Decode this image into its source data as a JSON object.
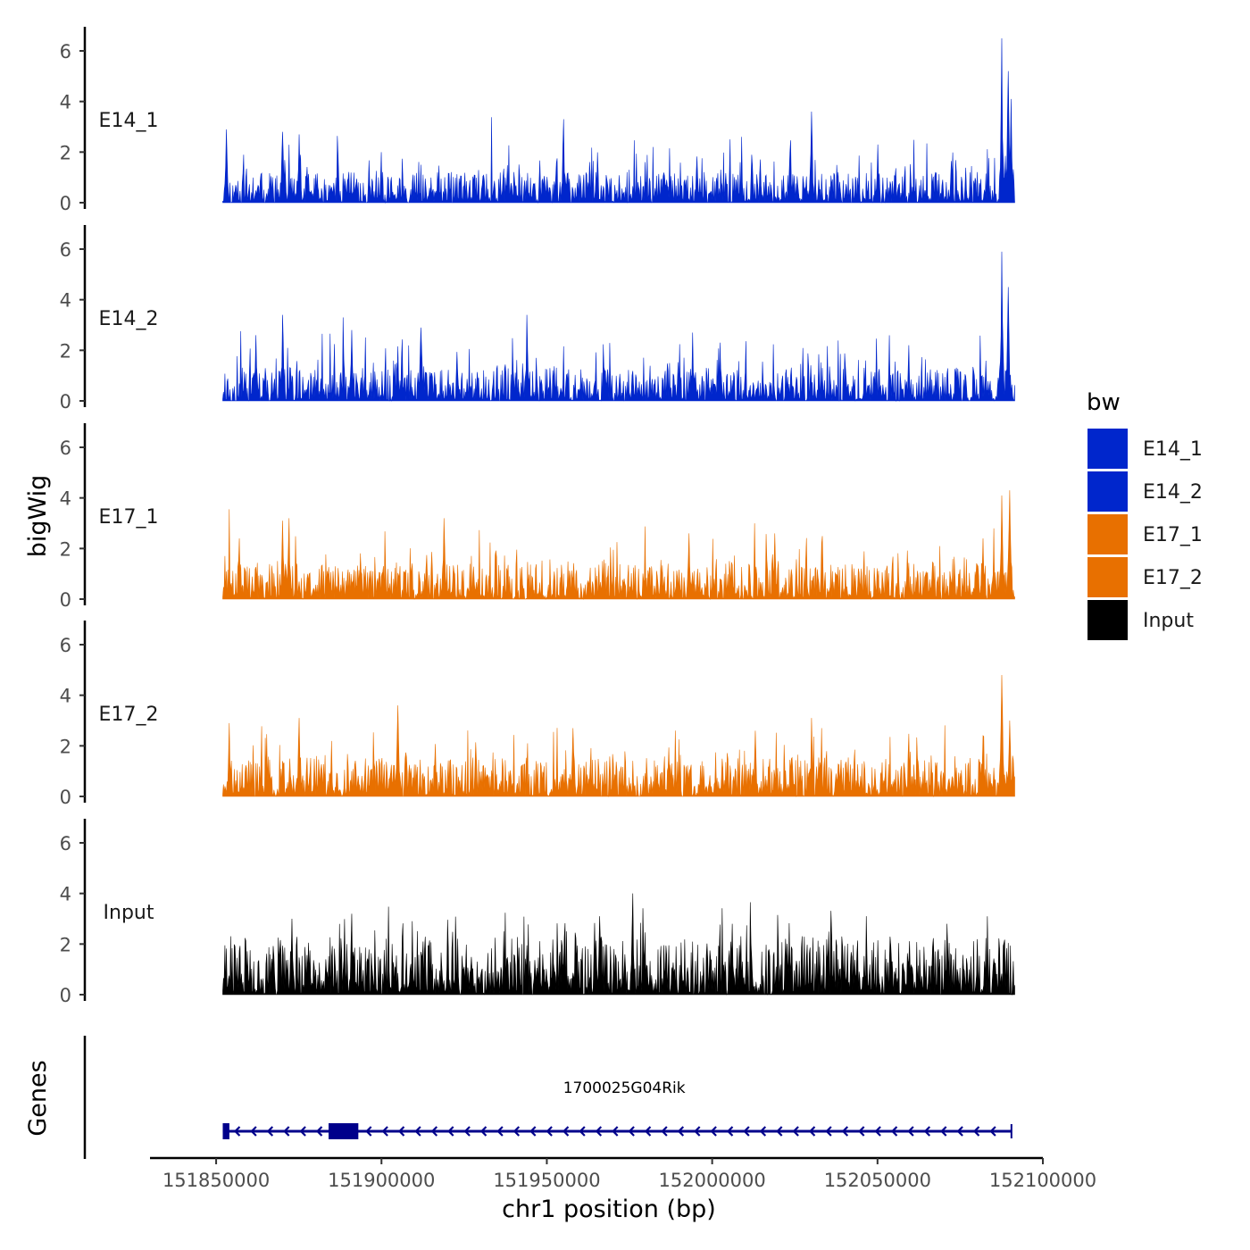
{
  "chart_data": {
    "type": "area",
    "title": "",
    "ylabel": "bigWig",
    "xlabel": "chr1 position (bp)",
    "genes_label": "Genes",
    "xlim": [
      151830000,
      152100000
    ],
    "data_x_range": [
      151852000,
      152091500
    ],
    "x_ticks": [
      151850000,
      151900000,
      151950000,
      152000000,
      152050000,
      152100000
    ],
    "x_tick_labels": [
      "151850000",
      "151900000",
      "151950000",
      "152000000",
      "152050000",
      "152100000"
    ],
    "ylim": [
      0,
      7
    ],
    "y_ticks": [
      0,
      2,
      4,
      6
    ],
    "y_tick_labels": [
      "0",
      "2",
      "4",
      "6"
    ],
    "tracks": [
      {
        "name": "E14_1",
        "color": "#0026cc",
        "seed": 11,
        "noise": 0.55,
        "peaks": [
          [
            151853000,
            2.9
          ],
          [
            151870000,
            2.8
          ],
          [
            151875000,
            2.7
          ],
          [
            151955000,
            3.3
          ],
          [
            152030000,
            3.6
          ],
          [
            152050000,
            2.3
          ],
          [
            152087500,
            6.5
          ],
          [
            152089500,
            5.2
          ],
          [
            152090500,
            4.1
          ]
        ]
      },
      {
        "name": "E14_2",
        "color": "#0026cc",
        "seed": 23,
        "noise": 0.6,
        "peaks": [
          [
            151862000,
            2.6
          ],
          [
            151870000,
            3.4
          ],
          [
            151891000,
            2.8
          ],
          [
            151912000,
            2.9
          ],
          [
            151944000,
            3.4
          ],
          [
            151994000,
            2.7
          ],
          [
            152087500,
            5.9
          ],
          [
            152089500,
            4.5
          ]
        ]
      },
      {
        "name": "E17_1",
        "color": "#e87000",
        "seed": 37,
        "noise": 0.65,
        "peaks": [
          [
            151857000,
            2.4
          ],
          [
            151872000,
            3.2
          ],
          [
            151870000,
            3.1
          ],
          [
            151919000,
            3.2
          ],
          [
            151993000,
            2.6
          ],
          [
            152019000,
            2.6
          ],
          [
            152082000,
            2.4
          ],
          [
            152087500,
            4.1
          ],
          [
            152090000,
            4.3
          ]
        ]
      },
      {
        "name": "E17_2",
        "color": "#e87000",
        "seed": 51,
        "noise": 0.7,
        "peaks": [
          [
            151854000,
            2.9
          ],
          [
            151875000,
            3.1
          ],
          [
            151905000,
            3.6
          ],
          [
            151958000,
            2.7
          ],
          [
            152013000,
            2.6
          ],
          [
            152030000,
            3.1
          ],
          [
            152082000,
            2.4
          ],
          [
            152087500,
            4.8
          ],
          [
            152090000,
            3.0
          ]
        ]
      },
      {
        "name": "Input",
        "color": "#000000",
        "seed": 73,
        "noise": 1.05,
        "peaks": [
          [
            151873000,
            3.0
          ],
          [
            151891000,
            3.2
          ],
          [
            151966000,
            3.1
          ],
          [
            151976000,
            4.0
          ],
          [
            152006000,
            2.8
          ],
          [
            152071000,
            2.8
          ]
        ]
      }
    ],
    "gene": {
      "name": "1700025G04Rik",
      "start": 151852000,
      "end": 152090500,
      "strand": "-",
      "color": "#00008b",
      "exons": [
        [
          151852000,
          151854000
        ],
        [
          151884000,
          151893000
        ]
      ]
    },
    "legend": {
      "title": "bw",
      "position": "right",
      "items": [
        {
          "label": "E14_1",
          "color": "#0026cc"
        },
        {
          "label": "E14_2",
          "color": "#0026cc"
        },
        {
          "label": "E17_1",
          "color": "#e87000"
        },
        {
          "label": "E17_2",
          "color": "#e87000"
        },
        {
          "label": "Input",
          "color": "#000000"
        }
      ]
    }
  }
}
